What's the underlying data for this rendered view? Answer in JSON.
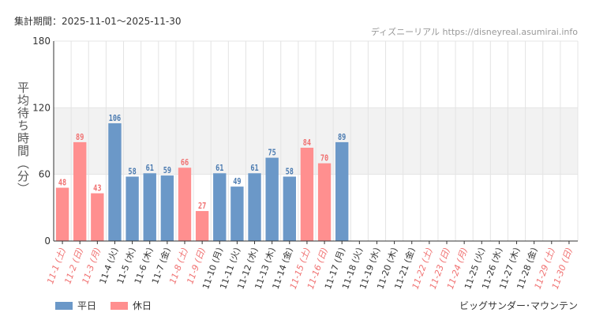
{
  "period_label": "集計期間：2025-11-01～2025-11-30",
  "source": "ディズニーリアル https://disneyreal.asumirai.info",
  "attraction": "ビッグサンダー･マウンテン",
  "colors": {
    "weekday": "#6b98c8",
    "holiday": "#ff8f8f",
    "weekday_label": "#4a7ab0",
    "holiday_label": "#f07070",
    "band": "#f2f2f2",
    "grid": "#e4e4e4",
    "axis": "#333333"
  },
  "chart_data": {
    "type": "bar",
    "title": "",
    "xlabel": "",
    "ylabel": "平均待ち時間（分）",
    "ylim": [
      0,
      180
    ],
    "yticks": [
      0,
      60,
      120,
      180
    ],
    "categories": [
      "11-1 (土)",
      "11-2 (日)",
      "11-3 (月)",
      "11-4 (火)",
      "11-5 (水)",
      "11-6 (木)",
      "11-7 (金)",
      "11-8 (土)",
      "11-9 (日)",
      "11-10 (月)",
      "11-11 (火)",
      "11-12 (水)",
      "11-13 (木)",
      "11-14 (金)",
      "11-15 (土)",
      "11-16 (日)",
      "11-17 (月)",
      "11-18 (火)",
      "11-19 (水)",
      "11-20 (木)",
      "11-21 (金)",
      "11-22 (土)",
      "11-23 (日)",
      "11-24 (月)",
      "11-25 (火)",
      "11-26 (水)",
      "11-27 (木)",
      "11-28 (金)",
      "11-29 (土)",
      "11-30 (日)"
    ],
    "values": [
      48,
      89,
      43,
      106,
      58,
      61,
      59,
      66,
      27,
      61,
      49,
      61,
      75,
      58,
      84,
      70,
      89,
      null,
      null,
      null,
      null,
      null,
      null,
      null,
      null,
      null,
      null,
      null,
      null,
      null
    ],
    "day_type": [
      "holiday",
      "holiday",
      "holiday",
      "weekday",
      "weekday",
      "weekday",
      "weekday",
      "holiday",
      "holiday",
      "weekday",
      "weekday",
      "weekday",
      "weekday",
      "weekday",
      "holiday",
      "holiday",
      "weekday",
      "weekday",
      "weekday",
      "weekday",
      "weekday",
      "holiday",
      "holiday",
      "holiday",
      "weekday",
      "weekday",
      "weekday",
      "weekday",
      "holiday",
      "holiday"
    ],
    "legend": [
      {
        "label": "平日",
        "type": "weekday"
      },
      {
        "label": "休日",
        "type": "holiday"
      }
    ],
    "legend_position": "bottom-left"
  }
}
